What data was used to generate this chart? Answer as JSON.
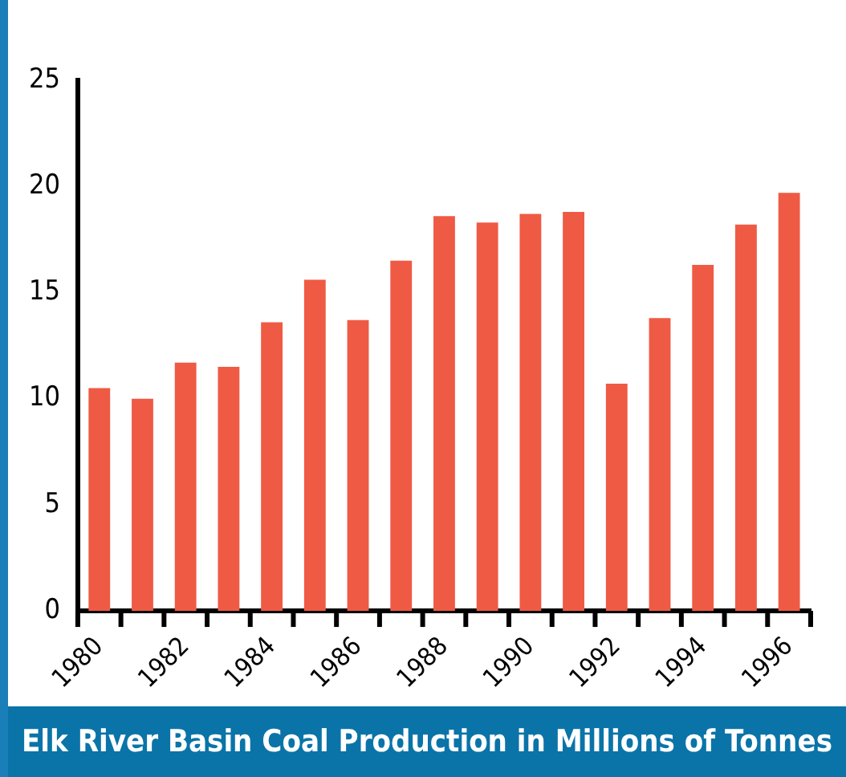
{
  "chart_data": {
    "type": "bar",
    "title": "Elk River Basin Coal Production in Millions of Tonnes",
    "categories": [
      "1980",
      null,
      "1982",
      null,
      "1984",
      null,
      "1986",
      null,
      "1988",
      null,
      "1990",
      null,
      "1992",
      null,
      "1994",
      null,
      "1996"
    ],
    "values": [
      10.5,
      10.0,
      11.7,
      11.5,
      13.6,
      15.6,
      13.7,
      16.5,
      18.6,
      18.3,
      18.7,
      18.8,
      10.7,
      13.8,
      16.3,
      18.2,
      19.7
    ],
    "color": "#ef5a45",
    "ylim": [
      0,
      25
    ],
    "yticks": [
      0,
      5,
      10,
      15,
      20,
      25
    ],
    "grid": false,
    "legend": false
  }
}
